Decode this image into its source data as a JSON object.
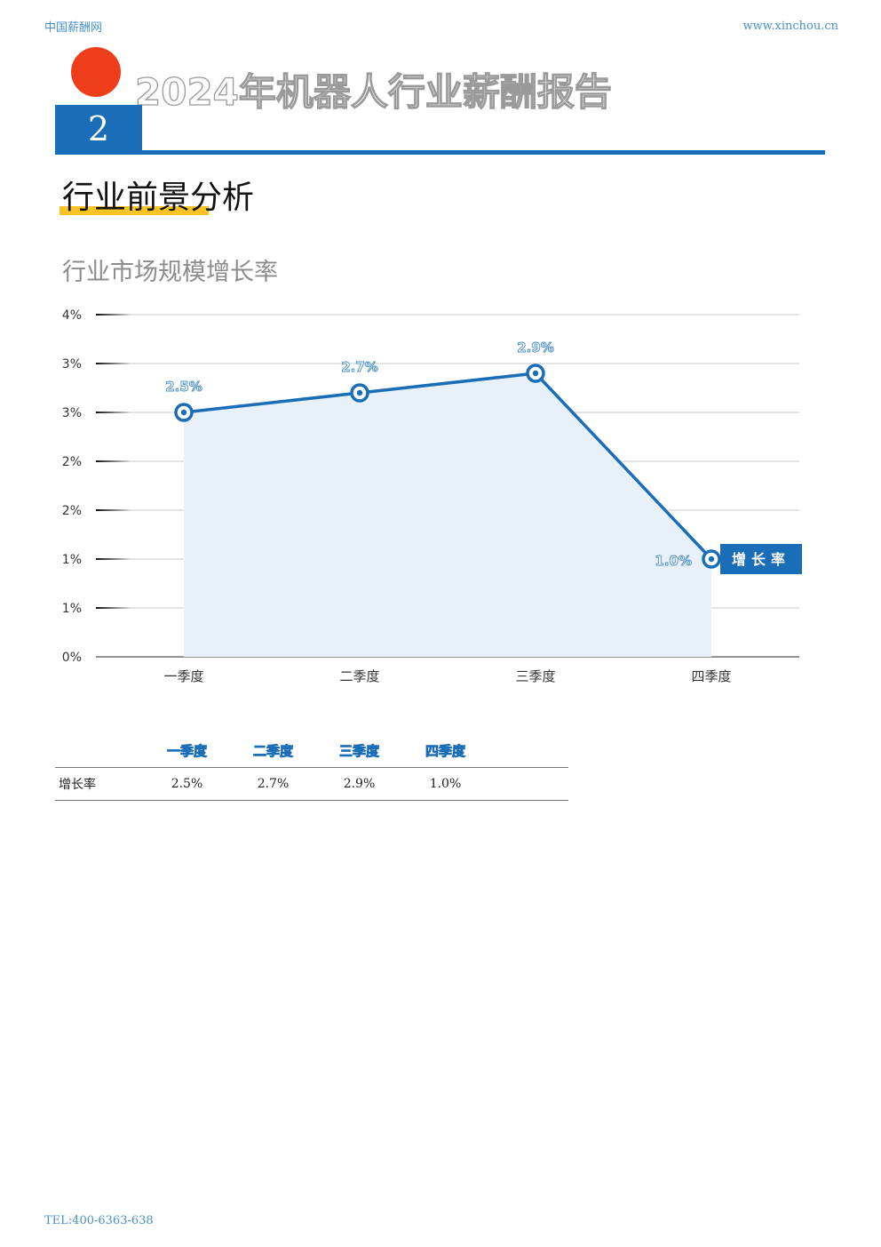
{
  "header": {
    "site_name": "中国薪酬网",
    "site_url": "www.xinchou.cn"
  },
  "report_title": "2024年机器人行业薪酬报告",
  "chapter_number": "2",
  "section_title": "行业前景分析",
  "chart_title": "行业市场规模增长率",
  "colors": {
    "accent": "#1a6db7",
    "red_dot": "#ee3d1b",
    "highlight": "#f7c325",
    "area_fill": "#e8f1fa"
  },
  "chart_data": {
    "type": "area",
    "categories": [
      "一季度",
      "二季度",
      "三季度",
      "四季度"
    ],
    "y_tick_labels": [
      "0%",
      "1%",
      "1%",
      "2%",
      "2%",
      "3%",
      "3%",
      "4%"
    ],
    "ylim": [
      0,
      3.5
    ],
    "series": [
      {
        "name": "增长率",
        "values": [
          2.5,
          2.7,
          2.9,
          1.0
        ],
        "labels": [
          "2.5%",
          "2.7%",
          "2.9%",
          "1.0%"
        ]
      }
    ],
    "legend_position": "right"
  },
  "table": {
    "headers": [
      "一季度",
      "二季度",
      "三季度",
      "四季度"
    ],
    "rows": [
      {
        "label": "增长率",
        "values": [
          "2.5%",
          "2.7%",
          "2.9%",
          "1.0%"
        ]
      }
    ]
  },
  "footer": {
    "tel": "TEL:400-6363-638"
  }
}
